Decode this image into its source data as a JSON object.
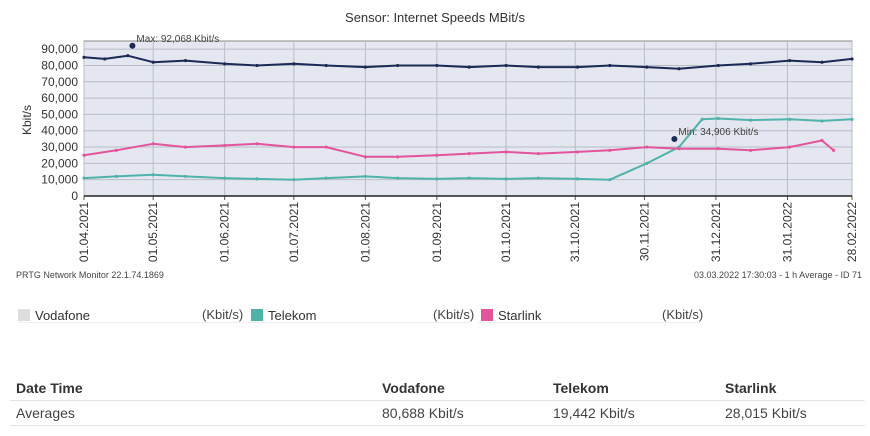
{
  "chart_data": {
    "type": "line",
    "title": "Sensor: Internet Speeds MBit/s",
    "ylabel": "Kbit/s",
    "xlabel": "",
    "ylim": [
      0,
      95000
    ],
    "yticks": [
      "0",
      "10,000",
      "20,000",
      "30,000",
      "40,000",
      "50,000",
      "60,000",
      "70,000",
      "80,000",
      "90,000"
    ],
    "xticks": [
      "01.04.2021",
      "01.05.2021",
      "01.06.2021",
      "01.07.2021",
      "01.08.2021",
      "01.09.2021",
      "01.10.2021",
      "31.10.2021",
      "30.11.2021",
      "31.12.2021",
      "31.01.2022",
      "28.02.2022"
    ],
    "x_start": "01.04.2021",
    "x_end": "28.02.2022",
    "grid": true,
    "annotations": [
      {
        "text": "Max: 92,068 Kbit/s",
        "x": "22.04.2021",
        "y": 92068
      },
      {
        "text": "Min: 34,906 Kbit/s",
        "x": "13.12.2021",
        "y": 34906
      }
    ],
    "series": [
      {
        "name": "Vodafone",
        "color": "#1b2a55",
        "x": [
          "01.04.2021",
          "10.04.2021",
          "20.04.2021",
          "01.05.2021",
          "15.05.2021",
          "01.06.2021",
          "15.06.2021",
          "01.07.2021",
          "15.07.2021",
          "01.08.2021",
          "15.08.2021",
          "01.09.2021",
          "15.09.2021",
          "01.10.2021",
          "15.10.2021",
          "01.11.2021",
          "15.11.2021",
          "01.12.2021",
          "15.12.2021",
          "01.01.2022",
          "15.01.2022",
          "01.02.2022",
          "15.02.2022",
          "28.02.2022"
        ],
        "values": [
          85000,
          84000,
          86000,
          82000,
          83000,
          81000,
          80000,
          81000,
          80000,
          79000,
          80000,
          80000,
          79000,
          80000,
          79000,
          79000,
          80000,
          79000,
          78000,
          80000,
          81000,
          83000,
          82000,
          84000
        ]
      },
      {
        "name": "Telekom",
        "color": "#4fb3aa",
        "x": [
          "01.04.2021",
          "15.04.2021",
          "01.05.2021",
          "15.05.2021",
          "01.06.2021",
          "15.06.2021",
          "01.07.2021",
          "15.07.2021",
          "01.08.2021",
          "15.08.2021",
          "01.09.2021",
          "15.09.2021",
          "01.10.2021",
          "15.10.2021",
          "01.11.2021",
          "15.11.2021",
          "01.12.2021",
          "15.12.2021",
          "25.12.2021",
          "01.01.2022",
          "15.01.2022",
          "01.02.2022",
          "15.02.2022",
          "28.02.2022"
        ],
        "values": [
          11000,
          12000,
          13000,
          12000,
          11000,
          10500,
          10000,
          11000,
          12000,
          11000,
          10500,
          11000,
          10500,
          11000,
          10500,
          10000,
          20000,
          30000,
          47000,
          47500,
          46500,
          47000,
          46000,
          47000
        ]
      },
      {
        "name": "Starlink",
        "color": "#e2559c",
        "x": [
          "01.04.2021",
          "15.04.2021",
          "01.05.2021",
          "15.05.2021",
          "01.06.2021",
          "15.06.2021",
          "01.07.2021",
          "15.07.2021",
          "01.08.2021",
          "15.08.2021",
          "01.09.2021",
          "15.09.2021",
          "01.10.2021",
          "15.10.2021",
          "01.11.2021",
          "15.11.2021",
          "01.12.2021",
          "15.12.2021",
          "01.01.2022",
          "15.01.2022",
          "01.02.2022",
          "15.02.2022",
          "20.02.2022"
        ],
        "values": [
          25000,
          28000,
          32000,
          30000,
          31000,
          32000,
          30000,
          30000,
          24000,
          24000,
          25000,
          26000,
          27000,
          26000,
          27000,
          28000,
          30000,
          29000,
          29000,
          28000,
          30000,
          34000,
          28000
        ]
      }
    ]
  },
  "footer": {
    "left": "PRTG Network Monitor 22.1.74.1869",
    "right": "03.03.2022 17:30:03 - 1 h Average - ID 71"
  },
  "legend": [
    {
      "name": "Vodafone",
      "unit": "(Kbit/s)",
      "color": "#dddddd"
    },
    {
      "name": "Telekom",
      "unit": "(Kbit/s)",
      "color": "#4fb3aa"
    },
    {
      "name": "Starlink",
      "unit": "(Kbit/s)",
      "color": "#e2559c"
    }
  ],
  "table": {
    "headers": [
      "Date Time",
      "Vodafone",
      "Telekom",
      "Starlink"
    ],
    "rows": [
      [
        "Averages",
        "80,688 Kbit/s",
        "19,442 Kbit/s",
        "28,015 Kbit/s"
      ]
    ]
  }
}
